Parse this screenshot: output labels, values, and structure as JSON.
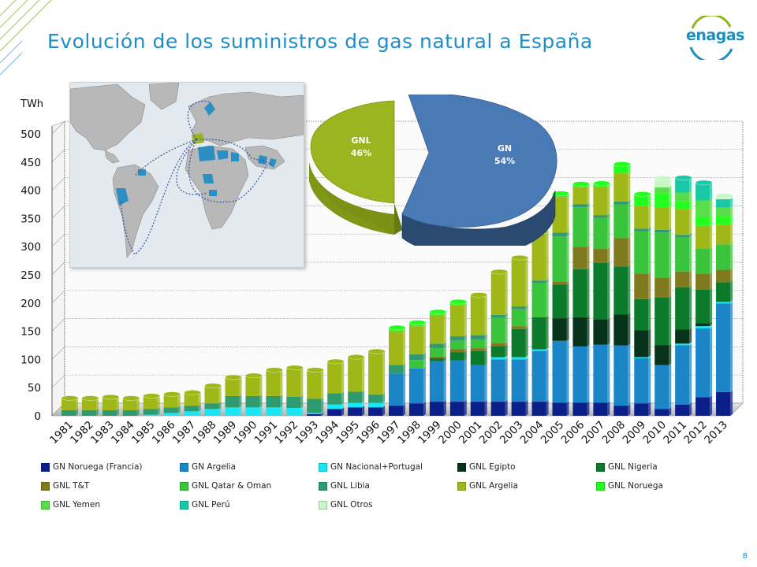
{
  "header": {
    "title": "Evolución de los suministros de gas natural a España",
    "logo_text": "enagas",
    "page_number": "8"
  },
  "chart_data": [
    {
      "type": "bar",
      "stacked": true,
      "ylabel": "TWh",
      "ylim": [
        0,
        500
      ],
      "yticks": [
        0,
        50,
        100,
        150,
        200,
        250,
        300,
        350,
        400,
        450,
        500
      ],
      "categories": [
        "1981",
        "1982",
        "1983",
        "1984",
        "1985",
        "1986",
        "1987",
        "1988",
        "1989",
        "1990",
        "1991",
        "1992",
        "1993",
        "1994",
        "1995",
        "1996",
        "1997",
        "1998",
        "1999",
        "2000",
        "2001",
        "2002",
        "2003",
        "2004",
        "2005",
        "2006",
        "2007",
        "2008",
        "2009",
        "2010",
        "2011",
        "2012",
        "2013"
      ],
      "series": [
        {
          "name": "GN Noruega (Francia)",
          "color": "#0b1f8a",
          "values": [
            0,
            0,
            0,
            0,
            0,
            0,
            0,
            0,
            0,
            0,
            0,
            0,
            3,
            12,
            15,
            15,
            18,
            22,
            25,
            25,
            25,
            25,
            25,
            25,
            23,
            23,
            23,
            18,
            22,
            12,
            20,
            33,
            42
          ]
        },
        {
          "name": "GN Argelia",
          "color": "#1a86c7",
          "values": [
            0,
            0,
            0,
            0,
            0,
            0,
            0,
            0,
            0,
            0,
            0,
            0,
            0,
            0,
            0,
            0,
            57,
            62,
            72,
            73,
            65,
            75,
            75,
            90,
            110,
            100,
            103,
            107,
            80,
            78,
            105,
            122,
            157
          ]
        },
        {
          "name": "GN Nacional+Portugal",
          "color": "#19e6f2",
          "values": [
            0,
            0,
            0,
            0,
            2,
            5,
            8,
            12,
            15,
            15,
            15,
            14,
            2,
            8,
            8,
            8,
            0,
            0,
            0,
            0,
            0,
            4,
            4,
            3,
            0,
            0,
            0,
            0,
            2,
            0,
            3,
            4,
            3
          ]
        },
        {
          "name": "GNL Egipto",
          "color": "#06331a",
          "values": [
            0,
            0,
            0,
            0,
            0,
            0,
            0,
            0,
            0,
            0,
            0,
            0,
            0,
            0,
            0,
            0,
            0,
            0,
            0,
            0,
            0,
            0,
            0,
            0,
            40,
            52,
            45,
            55,
            48,
            35,
            25,
            5,
            0
          ]
        },
        {
          "name": "GNL Nigeria",
          "color": "#0b7a2a",
          "values": [
            0,
            0,
            0,
            0,
            0,
            0,
            0,
            0,
            0,
            0,
            0,
            0,
            0,
            0,
            0,
            0,
            0,
            0,
            5,
            15,
            25,
            20,
            50,
            57,
            60,
            85,
            100,
            85,
            55,
            85,
            75,
            60,
            35
          ]
        },
        {
          "name": "GNL T&T",
          "color": "#7f7a1d",
          "values": [
            0,
            0,
            0,
            0,
            0,
            0,
            0,
            0,
            0,
            0,
            0,
            0,
            0,
            0,
            0,
            0,
            0,
            0,
            3,
            5,
            5,
            5,
            5,
            0,
            5,
            40,
            25,
            50,
            45,
            35,
            28,
            28,
            22
          ]
        },
        {
          "name": "GNL Qatar & Oman",
          "color": "#39c43c",
          "values": [
            0,
            0,
            0,
            0,
            0,
            0,
            0,
            0,
            0,
            0,
            0,
            0,
            0,
            0,
            0,
            0,
            0,
            15,
            15,
            15,
            15,
            45,
            30,
            60,
            80,
            70,
            55,
            60,
            75,
            80,
            60,
            45,
            45
          ]
        },
        {
          "name": "GNL Libia",
          "color": "#2f9a6e",
          "values": [
            10,
            10,
            10,
            10,
            10,
            10,
            10,
            10,
            20,
            20,
            20,
            20,
            25,
            20,
            20,
            15,
            15,
            10,
            8,
            8,
            8,
            5,
            5,
            5,
            7,
            5,
            5,
            5,
            5,
            5,
            5,
            0,
            0
          ]
        },
        {
          "name": "GNL Argelia",
          "color": "#9fb818",
          "values": [
            20,
            20,
            22,
            20,
            22,
            22,
            22,
            30,
            32,
            35,
            45,
            50,
            50,
            55,
            60,
            75,
            60,
            50,
            50,
            55,
            70,
            75,
            85,
            85,
            63,
            30,
            50,
            50,
            40,
            40,
            45,
            40,
            35
          ]
        },
        {
          "name": "GNL Noruega",
          "color": "#22ff1f",
          "values": [
            0,
            0,
            0,
            0,
            0,
            0,
            0,
            0,
            0,
            0,
            0,
            0,
            0,
            0,
            0,
            0,
            5,
            5,
            5,
            5,
            0,
            0,
            0,
            0,
            5,
            5,
            5,
            15,
            20,
            25,
            15,
            15,
            15
          ]
        },
        {
          "name": "GNL Yemen",
          "color": "#59dd4a",
          "values": [
            0,
            0,
            0,
            0,
            0,
            0,
            0,
            0,
            0,
            0,
            0,
            0,
            0,
            0,
            0,
            0,
            0,
            0,
            0,
            0,
            0,
            0,
            0,
            0,
            0,
            0,
            0,
            0,
            0,
            10,
            15,
            30,
            15
          ]
        },
        {
          "name": "GNL Perú",
          "color": "#19c9a6",
          "values": [
            0,
            0,
            0,
            0,
            0,
            0,
            0,
            0,
            0,
            0,
            0,
            0,
            0,
            0,
            0,
            0,
            0,
            0,
            0,
            0,
            0,
            0,
            0,
            0,
            0,
            0,
            0,
            0,
            0,
            0,
            25,
            30,
            15
          ]
        },
        {
          "name": "GNL Otros",
          "color": "#c9f6c8",
          "values": [
            0,
            0,
            0,
            0,
            0,
            0,
            0,
            0,
            0,
            0,
            0,
            0,
            0,
            0,
            0,
            0,
            0,
            0,
            0,
            0,
            0,
            0,
            0,
            0,
            0,
            0,
            0,
            0,
            0,
            15,
            0,
            0,
            5
          ]
        }
      ]
    },
    {
      "type": "pie",
      "slices": [
        {
          "label": "GN",
          "value": 54,
          "percent_text": "54%",
          "color": "#4a7ab5"
        },
        {
          "label": "GNL",
          "value": 46,
          "percent_text": "46%",
          "color": "#9ab51f"
        }
      ]
    }
  ],
  "map": {
    "description_icon": "world-map-supply-routes-image",
    "spain_color": "#9ab51f",
    "supplier_color": "#2b8fc4"
  }
}
